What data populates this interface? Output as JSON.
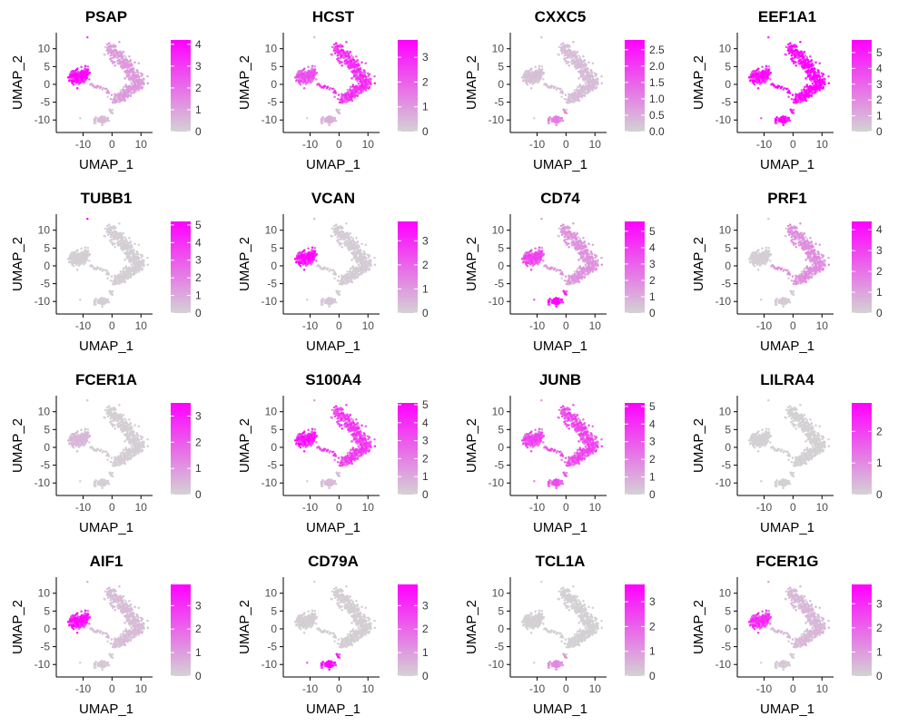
{
  "chart_data": {
    "type": "scatter",
    "xlabel": "UMAP_1",
    "ylabel": "UMAP_2",
    "xlim": [
      -18,
      14
    ],
    "ylim": [
      -13,
      14
    ],
    "x_ticks": [
      -10,
      0,
      10
    ],
    "y_ticks": [
      -10,
      -5,
      0,
      5,
      10
    ],
    "colors": {
      "low": "#d3d3d3",
      "high": "#ff00ff"
    },
    "clusters": {
      "monocyte": "left cluster (x≈-14..-8, y≈0..5)",
      "tcell": "large right arm (x≈-1..12)",
      "bcell": "lower cluster (x≈-6..-1, y≈-11..-9)",
      "platelet": "top point near (-8, 13)"
    },
    "panels": [
      {
        "gene": "PSAP",
        "legend_ticks": [
          "0",
          "1",
          "2",
          "3",
          "4"
        ],
        "max": 4.2,
        "expr": {
          "monocyte": 0.9,
          "tcell": 0.25,
          "bcell": 0.1,
          "platelet": 0.6
        }
      },
      {
        "gene": "HCST",
        "legend_ticks": [
          "0",
          "1",
          "2",
          "3"
        ],
        "max": 3.7,
        "expr": {
          "monocyte": 0.55,
          "tcell": 0.7,
          "bcell": 0.15,
          "platelet": 0.1
        }
      },
      {
        "gene": "CXXC5",
        "legend_ticks": [
          "0.0",
          "0.5",
          "1.0",
          "1.5",
          "2.0",
          "2.5"
        ],
        "max": 2.8,
        "expr": {
          "monocyte": 0.08,
          "tcell": 0.1,
          "bcell": 0.35,
          "platelet": 0.05
        }
      },
      {
        "gene": "EEF1A1",
        "legend_ticks": [
          "0",
          "1",
          "2",
          "3",
          "4",
          "5"
        ],
        "max": 5.8,
        "expr": {
          "monocyte": 0.85,
          "tcell": 0.95,
          "bcell": 0.9,
          "platelet": 0.7
        }
      },
      {
        "gene": "TUBB1",
        "legend_ticks": [
          "0",
          "1",
          "2",
          "3",
          "4",
          "5"
        ],
        "max": 5.2,
        "expr": {
          "monocyte": 0.02,
          "tcell": 0.02,
          "bcell": 0.02,
          "platelet": 0.9
        }
      },
      {
        "gene": "VCAN",
        "legend_ticks": [
          "0",
          "1",
          "2",
          "3"
        ],
        "max": 3.8,
        "expr": {
          "monocyte": 0.85,
          "tcell": 0.03,
          "bcell": 0.05,
          "platelet": 0.1
        }
      },
      {
        "gene": "CD74",
        "legend_ticks": [
          "0",
          "1",
          "2",
          "3",
          "4",
          "5"
        ],
        "max": 5.6,
        "expr": {
          "monocyte": 0.6,
          "tcell": 0.28,
          "bcell": 0.85,
          "platelet": 0.2
        }
      },
      {
        "gene": "PRF1",
        "legend_ticks": [
          "0",
          "1",
          "2",
          "3",
          "4"
        ],
        "max": 4.4,
        "expr": {
          "monocyte": 0.02,
          "tcell": 0.3,
          "bcell": 0.03,
          "platelet": 0.05
        }
      },
      {
        "gene": "FCER1A",
        "legend_ticks": [
          "0",
          "1",
          "2",
          "3"
        ],
        "max": 3.5,
        "expr": {
          "monocyte": 0.12,
          "tcell": 0.02,
          "bcell": 0.02,
          "platelet": 0.05
        }
      },
      {
        "gene": "S100A4",
        "legend_ticks": [
          "0",
          "1",
          "2",
          "3",
          "4",
          "5"
        ],
        "max": 5.1,
        "expr": {
          "monocyte": 0.8,
          "tcell": 0.65,
          "bcell": 0.1,
          "platelet": 0.2
        }
      },
      {
        "gene": "JUNB",
        "legend_ticks": [
          "0",
          "1",
          "2",
          "3",
          "4",
          "5"
        ],
        "max": 5.2,
        "expr": {
          "monocyte": 0.6,
          "tcell": 0.6,
          "bcell": 0.55,
          "platelet": 0.2
        }
      },
      {
        "gene": "LILRA4",
        "legend_ticks": [
          "0",
          "1",
          "2"
        ],
        "max": 2.9,
        "expr": {
          "monocyte": 0.01,
          "tcell": 0.01,
          "bcell": 0.01,
          "platelet": 0.01
        }
      },
      {
        "gene": "AIF1",
        "legend_ticks": [
          "0",
          "1",
          "2",
          "3"
        ],
        "max": 3.9,
        "expr": {
          "monocyte": 0.85,
          "tcell": 0.1,
          "bcell": 0.04,
          "platelet": 0.15
        }
      },
      {
        "gene": "CD79A",
        "legend_ticks": [
          "0",
          "1",
          "2",
          "3"
        ],
        "max": 3.9,
        "expr": {
          "monocyte": 0.02,
          "tcell": 0.02,
          "bcell": 0.85,
          "platelet": 0.02
        }
      },
      {
        "gene": "TCL1A",
        "legend_ticks": [
          "0",
          "1",
          "2",
          "3"
        ],
        "max": 3.7,
        "expr": {
          "monocyte": 0.01,
          "tcell": 0.01,
          "bcell": 0.3,
          "platelet": 0.01
        }
      },
      {
        "gene": "FCER1G",
        "legend_ticks": [
          "0",
          "1",
          "2",
          "3"
        ],
        "max": 3.8,
        "expr": {
          "monocyte": 0.7,
          "tcell": 0.12,
          "bcell": 0.04,
          "platelet": 0.2
        }
      }
    ]
  }
}
